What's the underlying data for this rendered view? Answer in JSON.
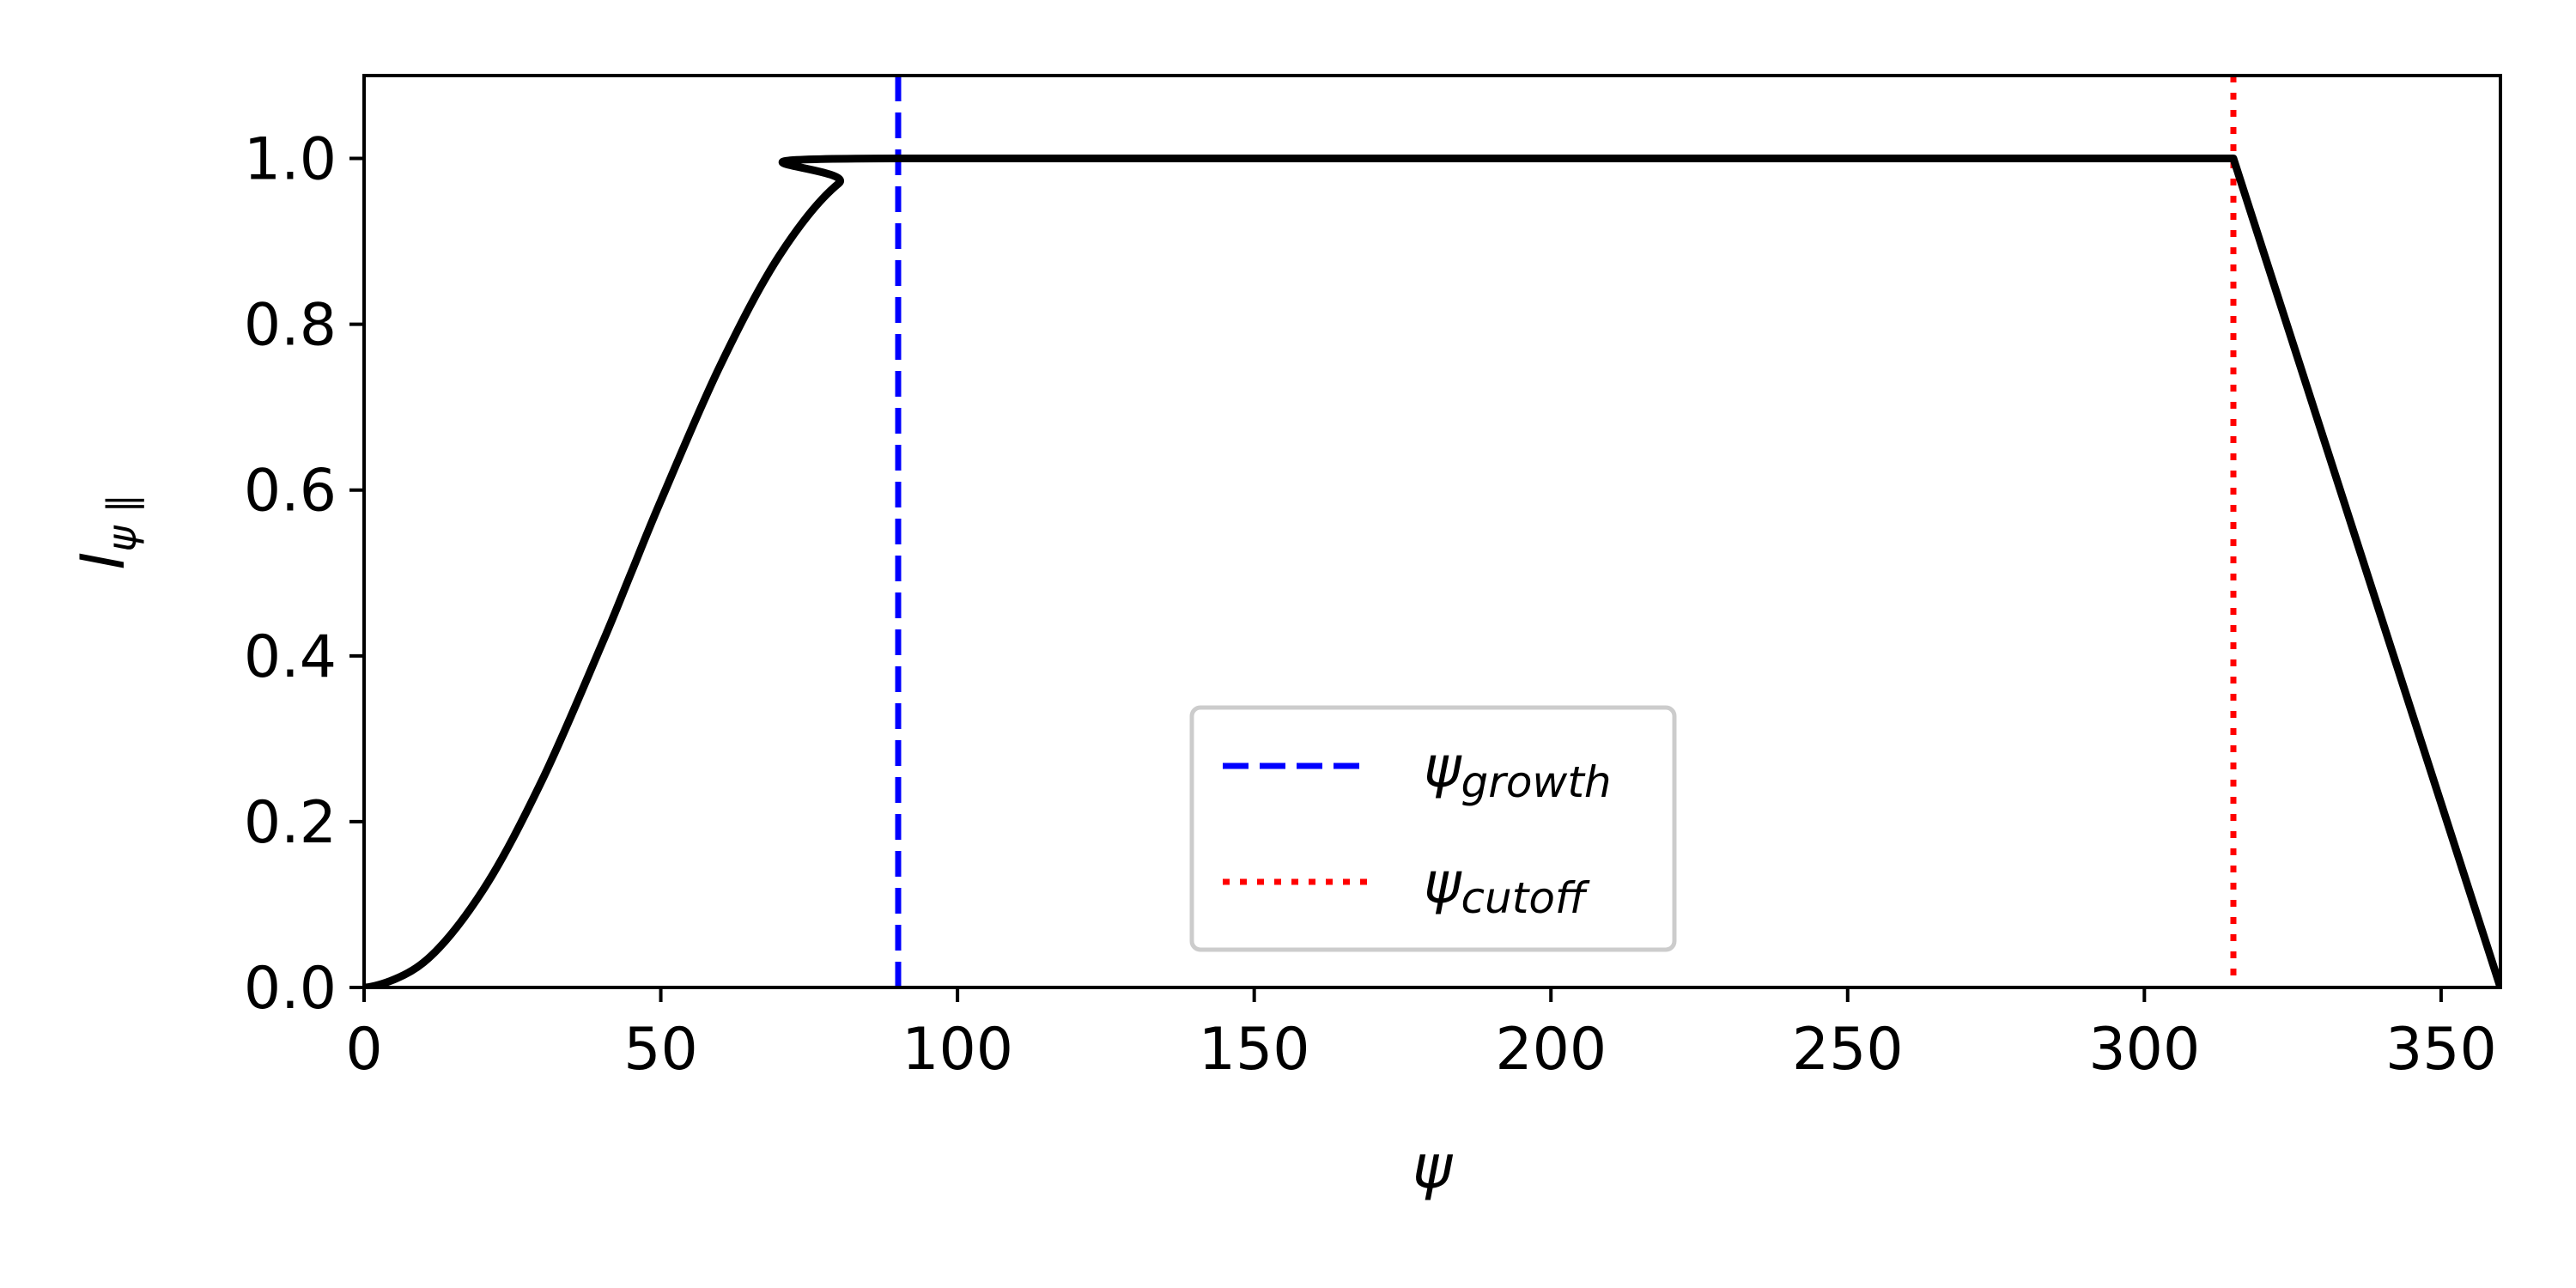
{
  "chart_data": {
    "type": "line",
    "xlabel": "ψ",
    "ylabel": "I",
    "ylabel_sub": "ψ ∥",
    "xlim": [
      0,
      360
    ],
    "ylim": [
      0.0,
      1.1
    ],
    "grid": false,
    "x_ticks": [
      "0",
      "50",
      "100",
      "150",
      "200",
      "250",
      "300",
      "350"
    ],
    "y_ticks": [
      "0.0",
      "0.2",
      "0.4",
      "0.6",
      "0.8",
      "1.0"
    ],
    "series": [
      {
        "color": "#000000",
        "style": "solid",
        "x": [
          0,
          10,
          20,
          30,
          40,
          45,
          50,
          60,
          70,
          80,
          90,
          315,
          360
        ],
        "y": [
          0.0,
          0.03,
          0.117,
          0.25,
          0.413,
          0.5,
          0.587,
          0.75,
          0.883,
          0.97,
          1.0,
          1.0,
          0.0
        ]
      }
    ],
    "vlines": [
      {
        "x": 90,
        "color": "#0000ff",
        "style": "dashed",
        "label_main": "ψ",
        "label_sub": "growth"
      },
      {
        "x": 315,
        "color": "#ff0000",
        "style": "dotted",
        "label_main": "ψ",
        "label_sub": "cutoff"
      }
    ],
    "legend": {
      "placement": "lower-center"
    }
  }
}
